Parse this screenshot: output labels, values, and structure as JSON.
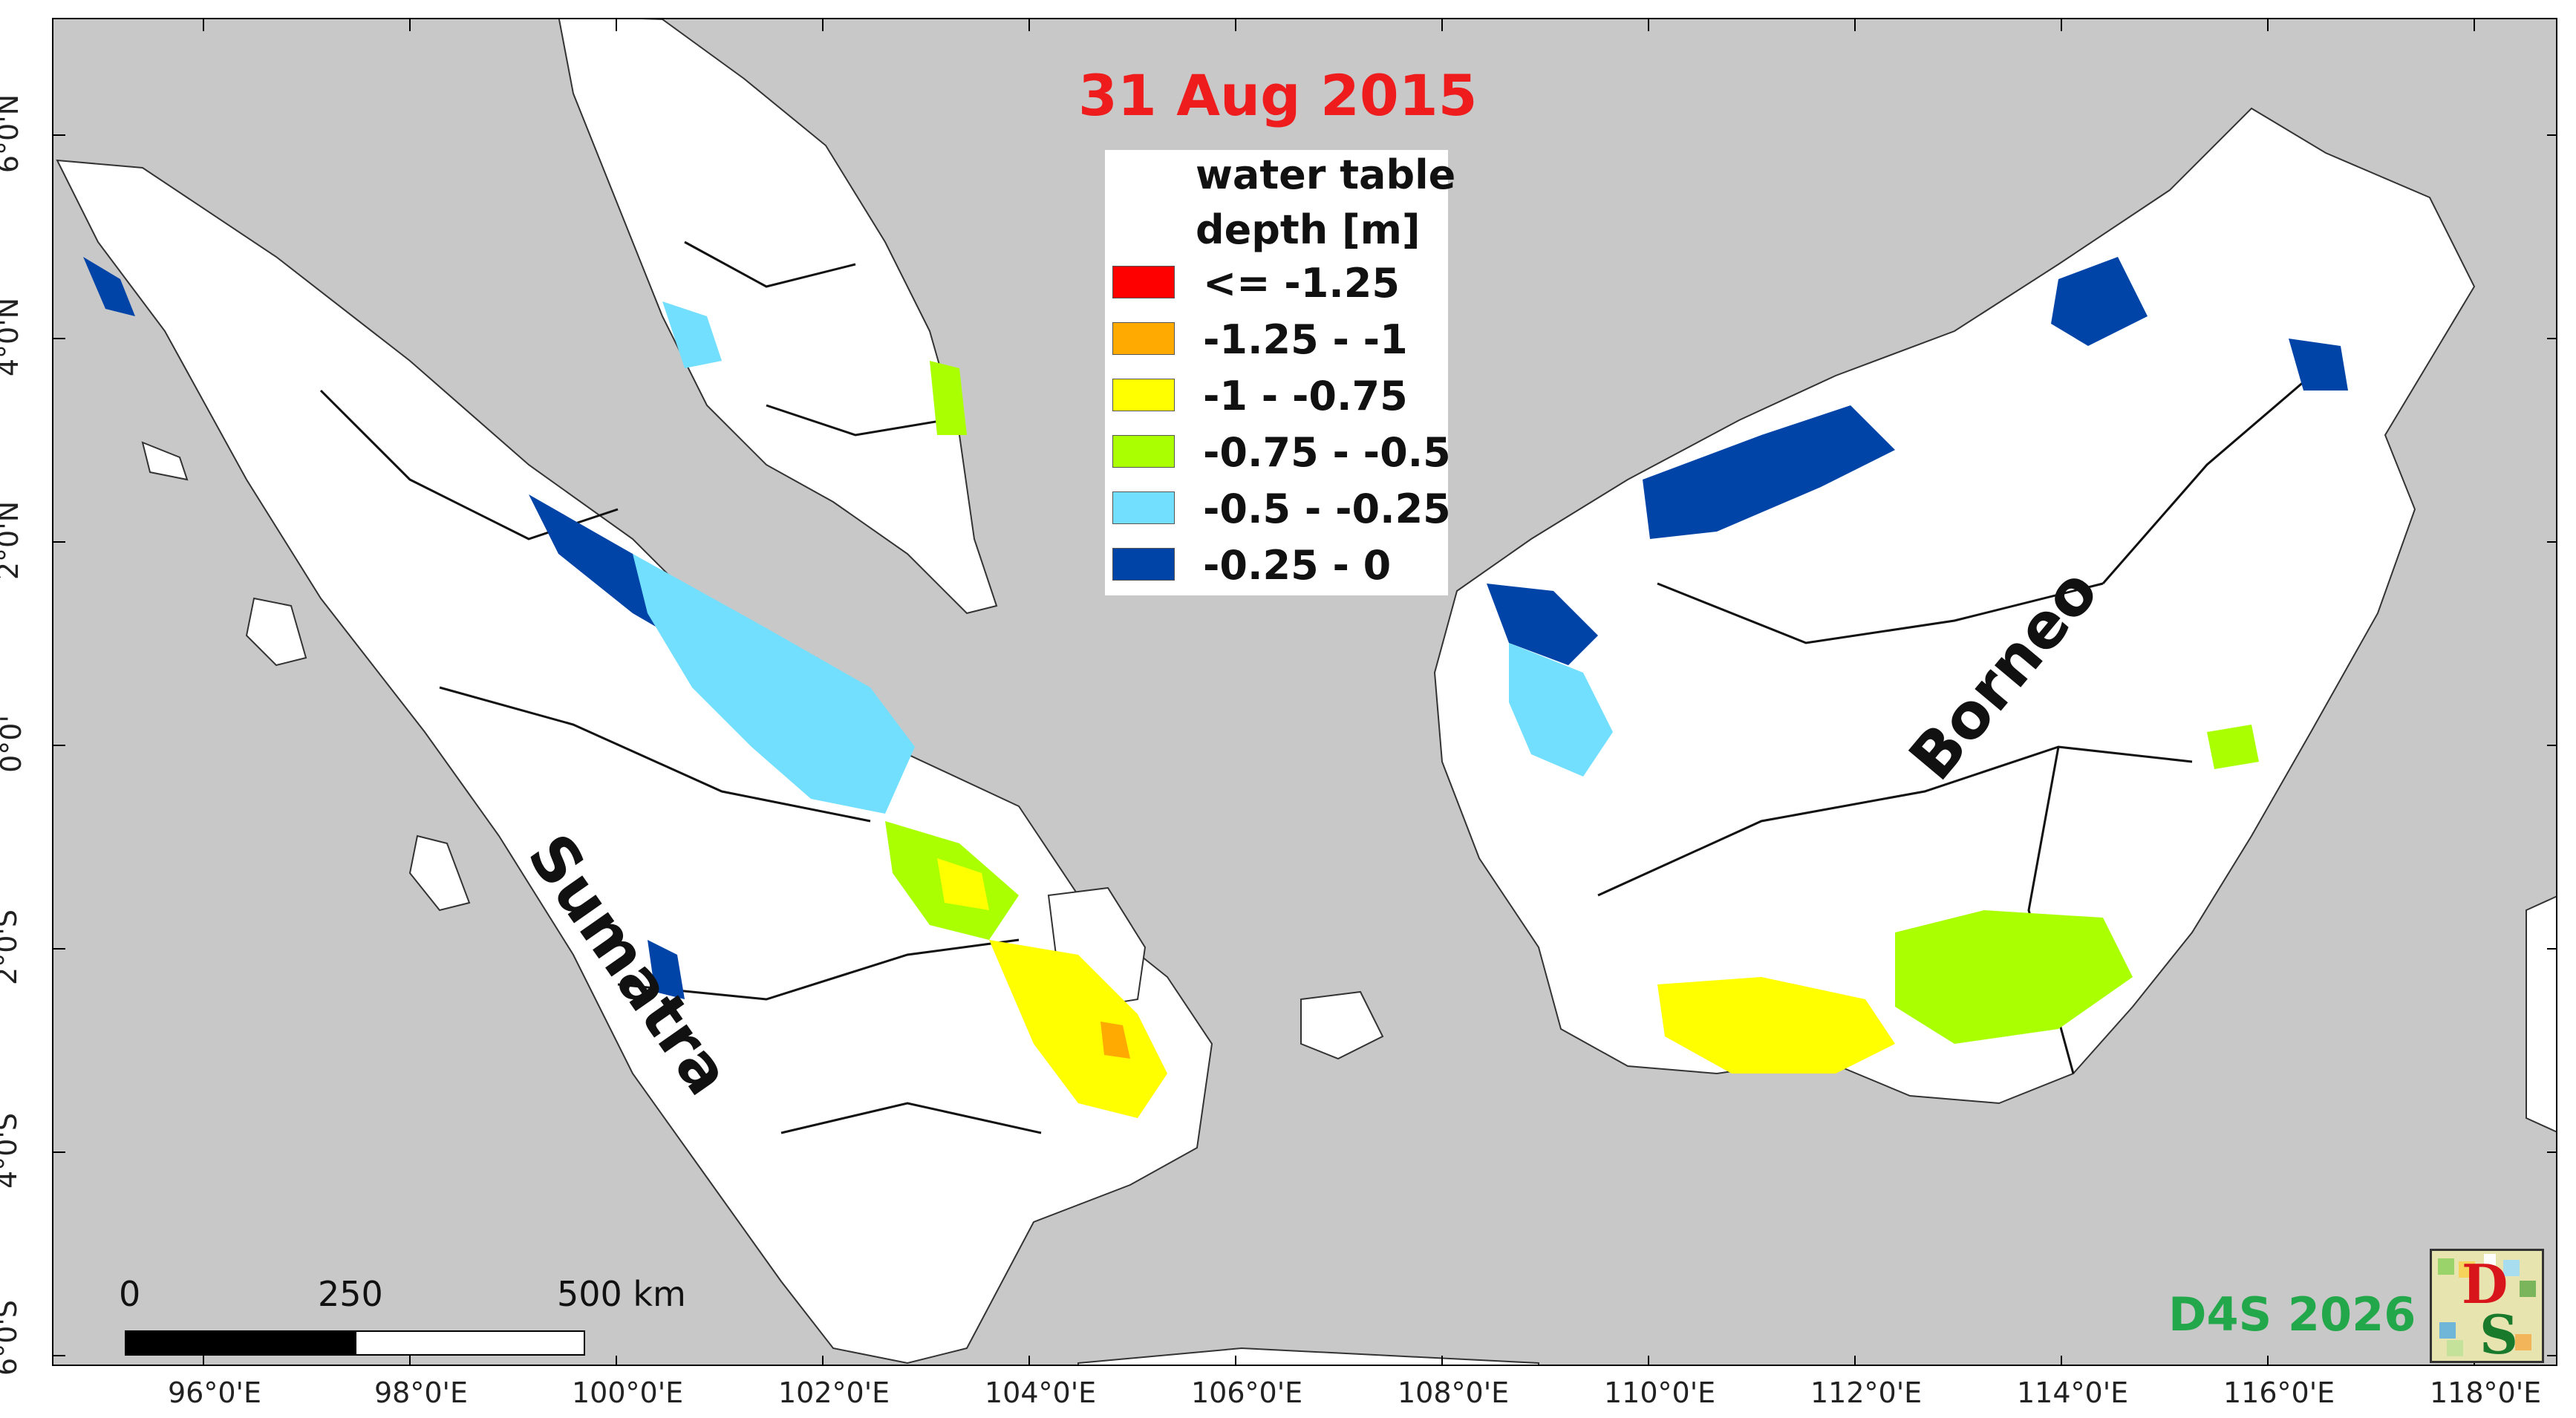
{
  "map": {
    "title": "31 Aug 2015",
    "legend": {
      "heading_line1": "water table",
      "heading_line2": "depth [m]",
      "items": [
        {
          "label": "<= -1.25",
          "color": "#ff0000"
        },
        {
          "label": "-1.25 - -1",
          "color": "#ffaa00"
        },
        {
          "label": "-1 - -0.75",
          "color": "#ffff00"
        },
        {
          "label": "-0.75 - -0.5",
          "color": "#aaff00"
        },
        {
          "label": "-0.5 - -0.25",
          "color": "#73dfff"
        },
        {
          "label": "-0.25 - 0",
          "color": "#0044a8"
        }
      ]
    },
    "place_labels": {
      "sumatra": "Sumatra",
      "borneo": "Borneo"
    },
    "longitude_ticks": [
      "96°0'E",
      "98°0'E",
      "100°0'E",
      "102°0'E",
      "104°0'E",
      "106°0'E",
      "108°0'E",
      "110°0'E",
      "112°0'E",
      "114°0'E",
      "116°0'E",
      "118°0'E"
    ],
    "latitude_ticks": [
      "6°0'N",
      "4°0'N",
      "2°0'N",
      "0°0'",
      "2°0'S",
      "4°0'S",
      "6°0'S"
    ],
    "scale_bar": {
      "labels": [
        "0",
        "250",
        "500 km"
      ]
    },
    "credit": "D4S 2026",
    "logo_letters": {
      "top": "D",
      "bottom": "S"
    },
    "colors": {
      "sea": "#c8c8c8",
      "land": "#ffffff",
      "title": "#ee1c1c",
      "credit": "#22a84a"
    }
  }
}
